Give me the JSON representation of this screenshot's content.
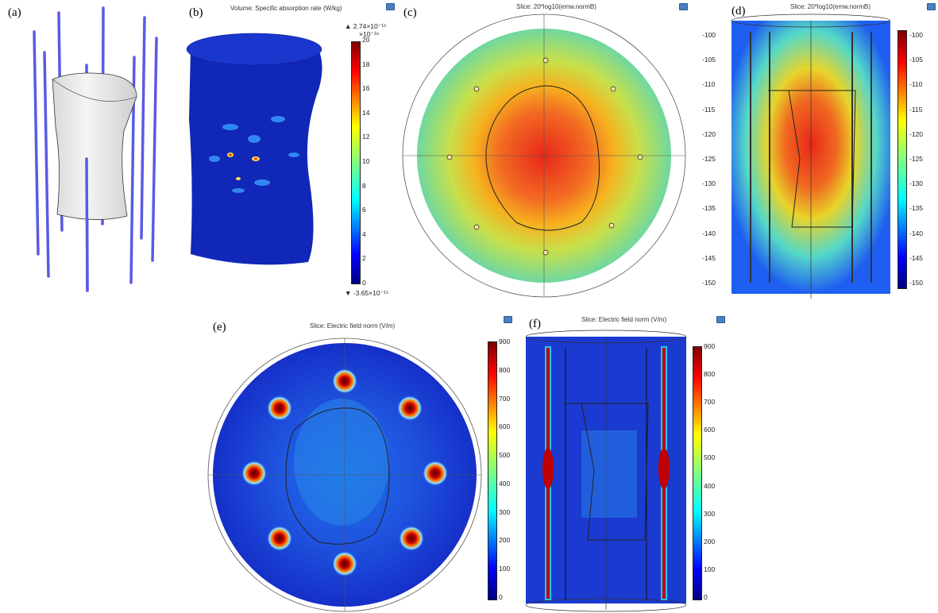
{
  "panels": {
    "a": {
      "label": "(a)"
    },
    "b": {
      "label": "(b)",
      "title": "Volume: Specific absorption rate (W/kg)",
      "max_label": "▲ 2.74×10⁻¹⁵",
      "exponent": "×10⁻¹⁶",
      "min_label": "▼ -3.65×10⁻¹⁵",
      "ticks": [
        "20",
        "18",
        "16",
        "14",
        "12",
        "10",
        "8",
        "6",
        "4",
        "2",
        "0"
      ]
    },
    "c": {
      "label": "(c)",
      "title": "Slice: 20*log10(emw.normB)",
      "ticks": [
        "-100",
        "-105",
        "-110",
        "-115",
        "-120",
        "-125",
        "-130",
        "-135",
        "-140",
        "-145",
        "-150"
      ]
    },
    "d": {
      "label": "(d)",
      "title": "Slice: 20*log10(emw.normB)",
      "ticks": [
        "-100",
        "-105",
        "-110",
        "-115",
        "-120",
        "-125",
        "-130",
        "-135",
        "-140",
        "-145",
        "-150"
      ]
    },
    "e": {
      "label": "(e)",
      "title": "Slice: Electric field norm (V/m)",
      "ticks": [
        "900",
        "800",
        "700",
        "600",
        "500",
        "400",
        "300",
        "200",
        "100",
        "0"
      ]
    },
    "f": {
      "label": "(f)",
      "title": "Slice: Electric field norm (V/m)",
      "ticks": [
        "900",
        "800",
        "700",
        "600",
        "500",
        "400",
        "300",
        "200",
        "100",
        "0"
      ]
    }
  },
  "colors": {
    "rod": "#5a5ae6",
    "jet_top": "#7f0000",
    "jet_bottom": "#00007f"
  }
}
